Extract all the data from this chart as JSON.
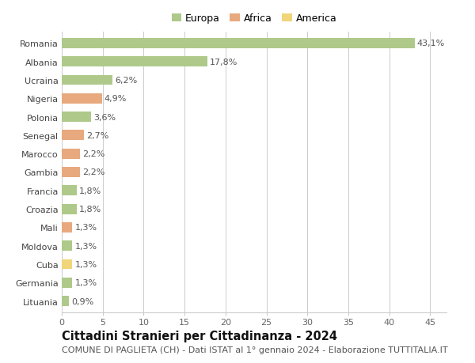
{
  "countries": [
    "Romania",
    "Albania",
    "Ucraina",
    "Nigeria",
    "Polonia",
    "Senegal",
    "Marocco",
    "Gambia",
    "Francia",
    "Croazia",
    "Mali",
    "Moldova",
    "Cuba",
    "Germania",
    "Lituania"
  ],
  "values": [
    43.1,
    17.8,
    6.2,
    4.9,
    3.6,
    2.7,
    2.2,
    2.2,
    1.8,
    1.8,
    1.3,
    1.3,
    1.3,
    1.3,
    0.9
  ],
  "continents": [
    "Europa",
    "Europa",
    "Europa",
    "Africa",
    "Europa",
    "Africa",
    "Africa",
    "Africa",
    "Europa",
    "Europa",
    "Africa",
    "Europa",
    "America",
    "Europa",
    "Europa"
  ],
  "continent_colors": {
    "Europa": "#aec98a",
    "Africa": "#e8a97e",
    "America": "#f0d57a"
  },
  "legend_labels": [
    "Europa",
    "Africa",
    "America"
  ],
  "legend_colors": [
    "#aec98a",
    "#e8a97e",
    "#f0d57a"
  ],
  "title": "Cittadini Stranieri per Cittadinanza - 2024",
  "subtitle": "COMUNE DI PAGLIETA (CH) - Dati ISTAT al 1° gennaio 2024 - Elaborazione TUTTITALIA.IT",
  "xlim": [
    0,
    47
  ],
  "xticks": [
    0,
    5,
    10,
    15,
    20,
    25,
    30,
    35,
    40,
    45
  ],
  "background_color": "#ffffff",
  "grid_color": "#cccccc",
  "bar_height": 0.55,
  "title_fontsize": 10.5,
  "subtitle_fontsize": 8,
  "label_fontsize": 8,
  "tick_fontsize": 8,
  "legend_fontsize": 9
}
